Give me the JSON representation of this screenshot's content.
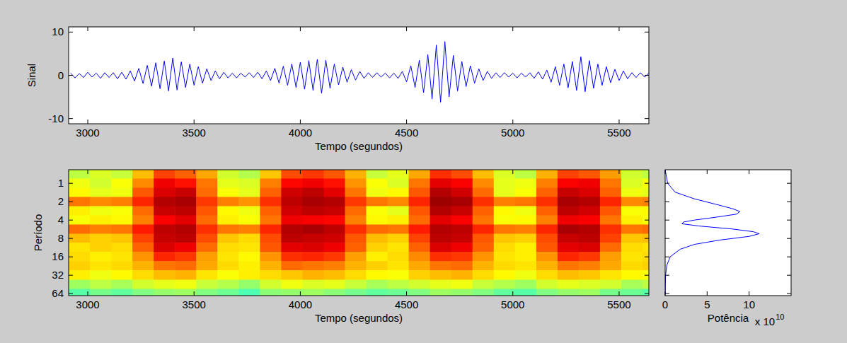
{
  "chart_data": [
    {
      "type": "line",
      "x_label": "Tempo (segundos)",
      "y_label": "Sinal",
      "color": "#0000ff",
      "xlim": [
        2910,
        5640
      ],
      "ylim": [
        -11.2,
        11.2
      ],
      "xticks": [
        3000,
        3500,
        4000,
        4500,
        5000,
        5500
      ],
      "yticks": [
        -10,
        0,
        10
      ],
      "x": [
        2920,
        2940,
        2960,
        2980,
        3000,
        3020,
        3040,
        3060,
        3080,
        3100,
        3120,
        3140,
        3160,
        3180,
        3200,
        3220,
        3240,
        3260,
        3280,
        3300,
        3320,
        3340,
        3360,
        3380,
        3400,
        3420,
        3440,
        3460,
        3480,
        3500,
        3520,
        3540,
        3560,
        3580,
        3600,
        3620,
        3640,
        3660,
        3680,
        3700,
        3720,
        3740,
        3760,
        3780,
        3800,
        3820,
        3840,
        3860,
        3880,
        3900,
        3920,
        3940,
        3960,
        3980,
        4000,
        4020,
        4040,
        4060,
        4080,
        4100,
        4120,
        4140,
        4160,
        4180,
        4200,
        4220,
        4240,
        4260,
        4280,
        4300,
        4320,
        4340,
        4360,
        4380,
        4400,
        4420,
        4440,
        4460,
        4480,
        4500,
        4520,
        4540,
        4560,
        4580,
        4600,
        4620,
        4640,
        4660,
        4680,
        4700,
        4720,
        4740,
        4760,
        4780,
        4800,
        4820,
        4840,
        4860,
        4880,
        4900,
        4920,
        4940,
        4960,
        4980,
        5000,
        5020,
        5040,
        5060,
        5080,
        5100,
        5120,
        5140,
        5160,
        5180,
        5200,
        5220,
        5240,
        5260,
        5280,
        5300,
        5320,
        5340,
        5360,
        5380,
        5400,
        5420,
        5440,
        5460,
        5480,
        5500,
        5520,
        5540,
        5560,
        5580,
        5600,
        5620,
        5640
      ],
      "values": [
        0.5,
        -0.6,
        0.4,
        -0.5,
        0.7,
        -0.4,
        0.5,
        -0.7,
        0.6,
        -0.5,
        0.6,
        -0.8,
        0.7,
        -0.9,
        1.0,
        -1.3,
        1.6,
        -1.9,
        2.3,
        -2.5,
        2.9,
        -3.1,
        3.3,
        -3.6,
        4.0,
        -3.4,
        3.1,
        -2.8,
        2.6,
        -2.3,
        2.0,
        -1.8,
        1.5,
        -1.2,
        1.0,
        -0.8,
        0.7,
        -0.6,
        0.5,
        -0.6,
        0.5,
        -0.4,
        0.6,
        -0.5,
        0.7,
        -0.8,
        1.0,
        -1.2,
        1.6,
        -1.8,
        2.1,
        -2.3,
        2.6,
        -2.8,
        3.0,
        -3.2,
        3.4,
        -3.5,
        3.7,
        -4.1,
        3.5,
        -3.0,
        2.6,
        -2.2,
        1.9,
        -1.6,
        1.3,
        -1.1,
        0.9,
        -0.7,
        0.6,
        -0.5,
        0.6,
        -0.4,
        0.5,
        -0.6,
        0.5,
        -0.7,
        0.9,
        -1.5,
        2.2,
        -2.8,
        3.5,
        -4.0,
        4.8,
        -5.5,
        7.0,
        -6.2,
        7.8,
        -5.0,
        4.6,
        -3.6,
        3.2,
        -2.6,
        2.2,
        -1.8,
        1.5,
        -1.2,
        0.9,
        -0.7,
        0.6,
        -0.5,
        0.6,
        -0.4,
        0.5,
        -0.6,
        0.5,
        -0.4,
        0.6,
        -0.7,
        0.8,
        -0.9,
        1.2,
        -1.6,
        2.0,
        -2.3,
        2.6,
        -2.9,
        3.2,
        -3.5,
        4.3,
        -3.8,
        3.4,
        -3.0,
        2.6,
        -2.3,
        2.0,
        -1.7,
        1.4,
        -1.2,
        1.0,
        -0.8,
        0.6,
        -0.5,
        0.6,
        -0.4,
        0.5
      ]
    },
    {
      "type": "heatmap",
      "x_label": "Tempo (segundos)",
      "y_label": "Período",
      "log": "y",
      "xlim": [
        2910,
        5640
      ],
      "ylim": [
        0.6,
        69
      ],
      "xticks": [
        3000,
        3500,
        4000,
        4500,
        5000,
        5500
      ],
      "yticks": [
        1,
        2,
        4,
        8,
        16,
        32,
        64
      ],
      "zlim": [
        0,
        10
      ],
      "x": [
        2960,
        3060,
        3160,
        3260,
        3360,
        3460,
        3560,
        3660,
        3760,
        3860,
        3960,
        4060,
        4160,
        4260,
        4360,
        4460,
        4560,
        4660,
        4760,
        4860,
        4960,
        5060,
        5160,
        5260,
        5360,
        5460,
        5560,
        5660
      ],
      "y": [
        0.7,
        1,
        1.4,
        2,
        2.8,
        4,
        5.6,
        8,
        11,
        16,
        22,
        32,
        45,
        64
      ],
      "cells": [
        [
          5.6,
          5.9,
          5.7,
          6.9,
          8.1,
          7.8,
          7.1,
          5.8,
          5.5,
          6.8,
          8.0,
          8.2,
          7.9,
          7.0,
          5.7,
          6.0,
          7.1,
          8.3,
          8.0,
          6.9,
          5.9,
          5.6,
          7.0,
          8.1,
          7.9,
          7.2,
          5.8,
          5.6
        ],
        [
          6.1,
          5.8,
          6.2,
          7.4,
          8.9,
          8.6,
          7.6,
          6.0,
          5.9,
          7.5,
          8.7,
          8.9,
          8.6,
          7.3,
          6.2,
          5.9,
          7.6,
          9.0,
          8.8,
          7.4,
          6.0,
          6.1,
          7.5,
          8.8,
          8.9,
          7.6,
          5.9,
          6.2
        ],
        [
          6.3,
          6.0,
          6.1,
          7.9,
          9.1,
          9.3,
          7.7,
          6.2,
          6.0,
          7.8,
          9.2,
          9.4,
          9.0,
          7.6,
          6.1,
          6.3,
          7.9,
          9.5,
          9.2,
          7.7,
          6.0,
          6.2,
          7.8,
          9.3,
          9.1,
          7.8,
          6.1,
          6.0
        ],
        [
          7.6,
          7.4,
          7.5,
          8.4,
          9.5,
          9.6,
          8.2,
          7.5,
          7.3,
          8.3,
          9.4,
          9.6,
          9.5,
          8.2,
          7.6,
          7.4,
          8.4,
          9.7,
          9.6,
          8.3,
          7.5,
          7.6,
          8.3,
          9.6,
          9.5,
          8.4,
          7.4,
          7.5
        ],
        [
          6.4,
          6.1,
          6.2,
          7.7,
          9.3,
          9.4,
          7.9,
          6.3,
          6.1,
          7.8,
          9.2,
          9.4,
          9.3,
          7.7,
          6.2,
          6.0,
          7.9,
          9.5,
          9.3,
          7.8,
          6.3,
          6.1,
          7.8,
          9.4,
          9.2,
          7.9,
          6.2,
          6.3
        ],
        [
          6.2,
          6.4,
          6.3,
          7.5,
          8.8,
          9.0,
          7.7,
          6.4,
          6.2,
          7.6,
          8.9,
          8.8,
          8.7,
          7.5,
          6.3,
          6.4,
          7.7,
          9.0,
          8.8,
          7.6,
          6.2,
          6.3,
          7.5,
          8.9,
          8.8,
          7.6,
          6.4,
          6.2
        ],
        [
          7.7,
          7.5,
          7.6,
          8.5,
          9.4,
          9.5,
          8.3,
          7.6,
          7.5,
          8.4,
          9.5,
          9.6,
          9.4,
          8.3,
          7.7,
          7.6,
          8.5,
          9.5,
          9.4,
          8.4,
          7.6,
          7.5,
          8.4,
          9.6,
          9.5,
          8.3,
          7.6,
          7.7
        ],
        [
          6.9,
          6.7,
          6.8,
          8.1,
          9.3,
          9.4,
          8.0,
          6.8,
          6.6,
          8.0,
          9.4,
          9.3,
          9.2,
          7.9,
          6.9,
          6.7,
          8.1,
          9.4,
          9.3,
          7.9,
          6.8,
          6.7,
          8.0,
          9.3,
          9.4,
          8.1,
          6.8,
          6.9
        ],
        [
          6.5,
          6.7,
          6.6,
          7.8,
          9.1,
          8.9,
          7.7,
          6.6,
          6.5,
          7.9,
          9.0,
          9.1,
          8.9,
          7.8,
          6.7,
          6.5,
          7.8,
          9.1,
          8.9,
          7.8,
          6.6,
          6.4,
          7.9,
          9.0,
          9.1,
          7.7,
          6.6,
          6.5
        ],
        [
          6.6,
          6.4,
          6.5,
          7.3,
          8.4,
          8.2,
          7.2,
          6.5,
          6.3,
          7.3,
          8.3,
          8.4,
          8.2,
          7.2,
          6.4,
          6.6,
          7.4,
          8.3,
          8.2,
          7.3,
          6.5,
          6.4,
          7.3,
          8.4,
          8.2,
          7.2,
          6.5,
          6.6
        ],
        [
          6.7,
          6.5,
          6.6,
          7.0,
          7.6,
          7.7,
          7.1,
          6.6,
          6.4,
          7.0,
          7.7,
          7.6,
          7.5,
          7.0,
          6.7,
          6.5,
          7.1,
          7.6,
          7.7,
          7.0,
          6.6,
          6.5,
          7.0,
          7.6,
          7.5,
          7.1,
          6.6,
          6.7
        ],
        [
          6.4,
          6.1,
          6.3,
          6.6,
          6.9,
          7.0,
          6.5,
          6.2,
          6.4,
          6.6,
          6.8,
          7.0,
          6.9,
          6.6,
          6.3,
          6.2,
          6.7,
          6.9,
          7.0,
          6.6,
          6.3,
          6.1,
          6.6,
          6.9,
          6.8,
          6.5,
          6.3,
          6.2
        ],
        [
          5.3,
          5.6,
          5.4,
          5.8,
          6.0,
          6.1,
          5.7,
          5.5,
          5.2,
          5.8,
          6.1,
          5.9,
          6.0,
          5.7,
          5.4,
          5.6,
          5.8,
          6.0,
          6.1,
          5.7,
          5.5,
          5.3,
          5.8,
          6.0,
          5.9,
          5.8,
          5.4,
          5.6
        ],
        [
          4.6,
          4.9,
          4.7,
          5.0,
          5.2,
          5.3,
          5.0,
          4.8,
          4.5,
          5.1,
          5.2,
          5.3,
          5.1,
          4.9,
          4.7,
          4.8,
          5.0,
          5.3,
          5.2,
          5.0,
          4.7,
          4.6,
          5.0,
          5.2,
          5.3,
          4.9,
          4.8,
          4.6
        ]
      ]
    },
    {
      "type": "line",
      "orientation": "horizontal",
      "x_label": "Potência",
      "x_multiplier": "x 10",
      "x_multiplier_exponent": "10",
      "color": "#0000ff",
      "log": "y",
      "tick_labels": "x",
      "xlim": [
        0,
        15
      ],
      "xticks": [
        0,
        5,
        10
      ],
      "ylim": [
        0.6,
        69
      ],
      "yticks": [
        1,
        2,
        4,
        8,
        16,
        32,
        64
      ],
      "y": [
        0.6,
        1,
        1.4,
        1.8,
        2.2,
        2.6,
        2.9,
        3.2,
        3.6,
        4.0,
        4.3,
        4.6,
        5.0,
        5.6,
        6.2,
        6.7,
        7.4,
        8.5,
        10,
        12,
        16,
        22,
        32,
        64
      ],
      "values": [
        0,
        0.3,
        1.2,
        3.5,
        6,
        8,
        8.9,
        8.5,
        6,
        3.5,
        2.2,
        2.0,
        4,
        8,
        10.5,
        11.2,
        10,
        6.5,
        3.5,
        1.8,
        0.6,
        0.2,
        0.05,
        0
      ]
    }
  ]
}
